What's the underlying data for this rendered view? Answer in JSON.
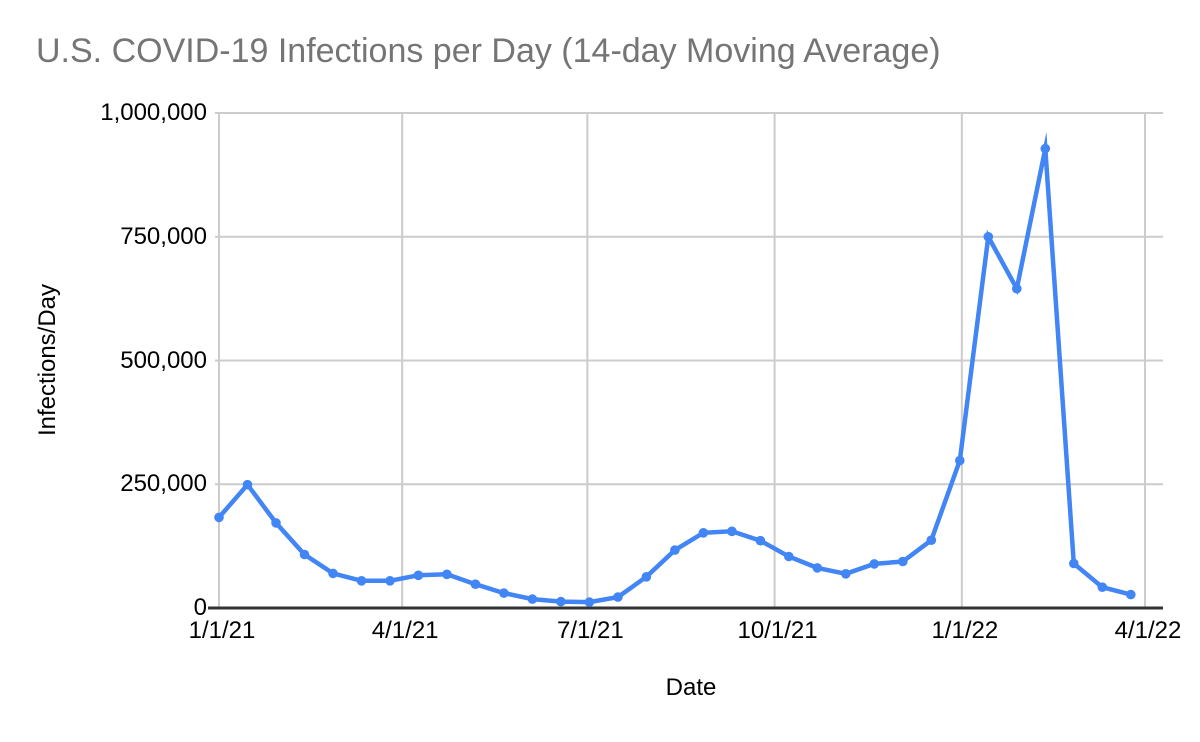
{
  "title": "U.S. COVID-19 Infections per Day (14-day Moving Average)",
  "chart_data": {
    "type": "line",
    "title": "U.S. COVID-19 Infections per Day (14-day Moving Average)",
    "xlabel": "Date",
    "ylabel": "Infections/Day",
    "legend": "none",
    "grid": true,
    "xlim": [
      "1/1/21",
      "4/1/22"
    ],
    "ylim": [
      0,
      1000000
    ],
    "x_ticks": [
      "1/1/21",
      "4/1/21",
      "7/1/21",
      "10/1/21",
      "1/1/22",
      "4/1/22"
    ],
    "y_ticks": [
      {
        "value": 0,
        "label": "0"
      },
      {
        "value": 250000,
        "label": "250,000"
      },
      {
        "value": 500000,
        "label": "500,000"
      },
      {
        "value": 750000,
        "label": "750,000"
      },
      {
        "value": 1000000,
        "label": "1,000,000"
      }
    ],
    "x": [
      "1/1/21",
      "1/15/21",
      "1/29/21",
      "2/12/21",
      "2/26/21",
      "3/12/21",
      "3/26/21",
      "4/9/21",
      "4/23/21",
      "5/7/21",
      "5/21/21",
      "6/4/21",
      "6/18/21",
      "7/2/21",
      "7/16/21",
      "7/30/21",
      "8/13/21",
      "8/27/21",
      "9/10/21",
      "9/24/21",
      "10/8/21",
      "10/22/21",
      "11/5/21",
      "11/19/21",
      "12/3/21",
      "12/17/21",
      "12/31/21",
      "1/14/22",
      "1/28/22",
      "2/11/22",
      "2/25/22",
      "3/11/22",
      "3/25/22"
    ],
    "values": [
      183000,
      249000,
      172000,
      108000,
      70000,
      55000,
      55000,
      66000,
      68000,
      48000,
      30000,
      18000,
      13000,
      12000,
      22000,
      63000,
      117000,
      152000,
      155000,
      136000,
      104000,
      81000,
      69000,
      89000,
      94000,
      137000,
      298000,
      750000,
      645000,
      928000,
      90000,
      42000,
      27000
    ],
    "colors": {
      "series": "#4285f4",
      "gridline": "#cccccc",
      "axis_line": "#333333",
      "title_text": "#757575",
      "tick_text": "#000000"
    }
  }
}
